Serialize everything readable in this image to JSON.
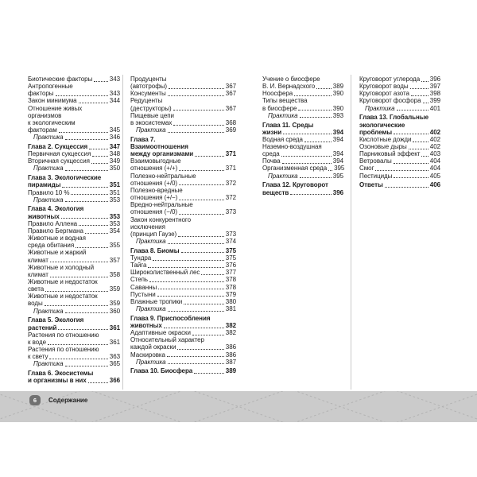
{
  "footer": {
    "page_number": "6",
    "label": "Содержание"
  },
  "colors": {
    "text": "#1c1c1c",
    "divider": "#c9c9c9",
    "footer_band": "#cbcbcb",
    "footer_badge": "#717171",
    "footer_pattern_line": "#b2b2b2"
  },
  "toc": {
    "columns": [
      {
        "entries": [
          {
            "t": "Биотические факторы",
            "p": "343"
          },
          {
            "t": "Антропогенные"
          },
          {
            "t": "факторы",
            "p": "343"
          },
          {
            "t": "Закон минимума",
            "p": "344"
          },
          {
            "t": "Отношение живых"
          },
          {
            "t": "организмов"
          },
          {
            "t": "к экологическим"
          },
          {
            "t": "факторам",
            "p": "345"
          },
          {
            "t": "Практика",
            "p": "346",
            "i": 1
          },
          {
            "t": "Глава 2. Сукцессия",
            "p": "347",
            "b": 1,
            "g": 1
          },
          {
            "t": "Первичная сукцессия",
            "p": "348"
          },
          {
            "t": "Вторичная сукцессия",
            "p": "349"
          },
          {
            "t": "Практика",
            "p": "350",
            "i": 1
          },
          {
            "t": "Глава 3. Экологические",
            "b": 1,
            "g": 1
          },
          {
            "t": "пирамиды",
            "p": "351",
            "b": 1
          },
          {
            "t": "Правило 10 %",
            "p": "351"
          },
          {
            "t": "Практика",
            "p": "353",
            "i": 1
          },
          {
            "t": "Глава 4. Экология",
            "b": 1,
            "g": 1
          },
          {
            "t": "животных",
            "p": "353",
            "b": 1
          },
          {
            "t": "Правило Аллена",
            "p": "353"
          },
          {
            "t": "Правило Бергмана",
            "p": "354"
          },
          {
            "t": "Животные и водная"
          },
          {
            "t": "среда обитания",
            "p": "355"
          },
          {
            "t": "Животные и жаркий"
          },
          {
            "t": "климат",
            "p": "357"
          },
          {
            "t": "Животные и холодный"
          },
          {
            "t": "климат",
            "p": "358"
          },
          {
            "t": "Животные и недостаток"
          },
          {
            "t": "света",
            "p": "359"
          },
          {
            "t": "Животные и недостаток"
          },
          {
            "t": "воды",
            "p": "359"
          },
          {
            "t": "Практика",
            "p": "360",
            "i": 1
          },
          {
            "t": "Глава 5. Экология",
            "b": 1,
            "g": 1
          },
          {
            "t": "растений",
            "p": "361",
            "b": 1
          },
          {
            "t": "Растения по отношению"
          },
          {
            "t": "к воде",
            "p": "361"
          },
          {
            "t": "Растения по отношению"
          },
          {
            "t": "к свету",
            "p": "363"
          },
          {
            "t": "Практика",
            "p": "365",
            "i": 1
          },
          {
            "t": "Глава 6. Экосистемы",
            "b": 1,
            "g": 1
          },
          {
            "t": "и организмы в них",
            "p": "366",
            "b": 1
          }
        ]
      },
      {
        "entries": [
          {
            "t": "Продуценты"
          },
          {
            "t": "(автотрофы)",
            "p": "367"
          },
          {
            "t": "Консументы",
            "p": "367"
          },
          {
            "t": "Редуценты"
          },
          {
            "t": "(деструкторы)",
            "p": "367"
          },
          {
            "t": "Пищевые цепи"
          },
          {
            "t": "в экосистемах",
            "p": "368"
          },
          {
            "t": "Практика",
            "p": "369",
            "i": 1
          },
          {
            "t": "Глава 7.",
            "b": 1,
            "g": 1
          },
          {
            "t": "Взаимоотношения",
            "b": 1
          },
          {
            "t": "между организмами",
            "p": "371",
            "b": 1
          },
          {
            "t": "Взаимовыгодные"
          },
          {
            "t": "отношения (+/+)",
            "p": "371"
          },
          {
            "t": "Полезно-нейтральные"
          },
          {
            "t": "отношения (+/0)",
            "p": "372"
          },
          {
            "t": "Полезно-вредные"
          },
          {
            "t": "отношения (+/−)",
            "p": "372"
          },
          {
            "t": "Вредно-нейтральные"
          },
          {
            "t": "отношения (−/0)",
            "p": "373"
          },
          {
            "t": "Закон конкурентного"
          },
          {
            "t": "исключения"
          },
          {
            "t": "(принцип Гаузе)",
            "p": "373"
          },
          {
            "t": "Практика",
            "p": "374",
            "i": 1
          },
          {
            "t": "Глава 8. Биомы",
            "p": "375",
            "b": 1,
            "g": 1
          },
          {
            "t": "Тундра",
            "p": "375"
          },
          {
            "t": "Тайга",
            "p": "376"
          },
          {
            "t": "Широколиственный лес",
            "p": "377"
          },
          {
            "t": "Степь",
            "p": "378"
          },
          {
            "t": "Саванны",
            "p": "378"
          },
          {
            "t": "Пустыни",
            "p": "379"
          },
          {
            "t": "Влажные тропики",
            "p": "380"
          },
          {
            "t": "Практика",
            "p": "381",
            "i": 1
          },
          {
            "t": "Глава 9. Приспособления",
            "b": 1,
            "g": 1
          },
          {
            "t": "животных",
            "p": "382",
            "b": 1
          },
          {
            "t": "Адаптивные окраски",
            "p": "382"
          },
          {
            "t": "Относительный характер"
          },
          {
            "t": "каждой окраски",
            "p": "386"
          },
          {
            "t": "Маскировка",
            "p": "386"
          },
          {
            "t": "Практика",
            "p": "387",
            "i": 1
          },
          {
            "t": "Глава 10. Биосфера",
            "p": "389",
            "b": 1,
            "g": 1
          }
        ]
      },
      {
        "entries": [
          {
            "t": "Учение о биосфере"
          },
          {
            "t": "В. И. Вернадского",
            "p": "389"
          },
          {
            "t": "Ноосфера",
            "p": "390"
          },
          {
            "t": "Типы вещества"
          },
          {
            "t": "в биосфере",
            "p": "390"
          },
          {
            "t": "Практика",
            "p": "393",
            "i": 1
          },
          {
            "t": "Глава 11. Среды",
            "b": 1,
            "g": 1
          },
          {
            "t": "жизни",
            "p": "394",
            "b": 1
          },
          {
            "t": "Водная среда",
            "p": "394"
          },
          {
            "t": "Наземно-воздушная"
          },
          {
            "t": "среда",
            "p": "394"
          },
          {
            "t": "Почва",
            "p": "394"
          },
          {
            "t": "Организменная среда",
            "p": "395"
          },
          {
            "t": "Практика",
            "p": "395",
            "i": 1
          },
          {
            "t": "Глава 12. Круговорот",
            "b": 1,
            "g": 1
          },
          {
            "t": "веществ",
            "p": "396",
            "b": 1
          }
        ]
      },
      {
        "entries": [
          {
            "t": "Круговорот углерода",
            "p": "396"
          },
          {
            "t": "Круговорот воды",
            "p": "397"
          },
          {
            "t": "Круговорот азота",
            "p": "398"
          },
          {
            "t": "Круговорот фосфора",
            "p": "399"
          },
          {
            "t": "Практика",
            "p": "401",
            "i": 1
          },
          {
            "t": "Глава 13. Глобальные",
            "b": 1,
            "g": 1
          },
          {
            "t": "экологические",
            "b": 1
          },
          {
            "t": "проблемы",
            "p": "402",
            "b": 1
          },
          {
            "t": "Кислотные дожди",
            "p": "402"
          },
          {
            "t": "Озоновые дыры",
            "p": "402"
          },
          {
            "t": "Парниковый эффект",
            "p": "403"
          },
          {
            "t": "Ветровалы",
            "p": "404"
          },
          {
            "t": "Смог",
            "p": "404"
          },
          {
            "t": "Пестициды",
            "p": "405"
          },
          {
            "t": "Ответы",
            "p": "406",
            "b": 1,
            "g": 1
          }
        ]
      }
    ]
  }
}
